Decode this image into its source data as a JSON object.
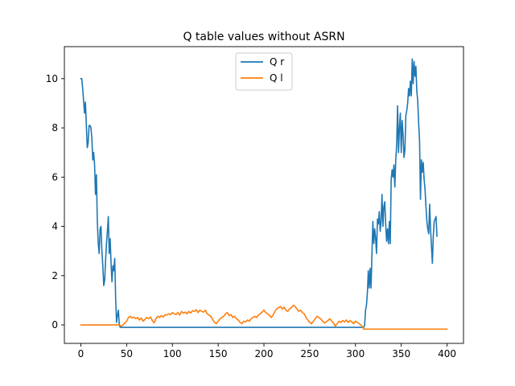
{
  "chart_data": {
    "type": "line",
    "title": "Q table values without ASRN",
    "xlabel": "",
    "ylabel": "",
    "xlim": [
      -18,
      418
    ],
    "ylim": [
      -0.75,
      11.3
    ],
    "xticks": [
      0,
      50,
      100,
      150,
      200,
      250,
      300,
      350,
      400
    ],
    "yticks": [
      0,
      2,
      4,
      6,
      8,
      10
    ],
    "legend_position": "top-center",
    "grid": false,
    "series": [
      {
        "name": "Q r",
        "color": "#1f77b4",
        "points": [
          [
            0,
            10.0
          ],
          [
            1,
            10.0
          ],
          [
            2,
            9.6
          ],
          [
            3,
            9.1
          ],
          [
            4,
            8.6
          ],
          [
            5,
            9.05
          ],
          [
            6,
            8.1
          ],
          [
            7,
            7.2
          ],
          [
            8,
            7.4
          ],
          [
            9,
            8.1
          ],
          [
            10,
            8.1
          ],
          [
            11,
            8.0
          ],
          [
            12,
            7.6
          ],
          [
            13,
            6.7
          ],
          [
            14,
            7.0
          ],
          [
            15,
            6.5
          ],
          [
            16,
            5.3
          ],
          [
            17,
            6.1
          ],
          [
            18,
            4.2
          ],
          [
            19,
            3.3
          ],
          [
            20,
            2.9
          ],
          [
            21,
            3.9
          ],
          [
            22,
            4.0
          ],
          [
            23,
            3.0
          ],
          [
            24,
            2.4
          ],
          [
            25,
            1.6
          ],
          [
            26,
            1.8
          ],
          [
            27,
            2.6
          ],
          [
            28,
            3.3
          ],
          [
            29,
            3.8
          ],
          [
            30,
            4.4
          ],
          [
            31,
            2.9
          ],
          [
            32,
            3.5
          ],
          [
            33,
            2.5
          ],
          [
            34,
            1.75
          ],
          [
            35,
            2.4
          ],
          [
            36,
            2.2
          ],
          [
            37,
            2.7
          ],
          [
            38,
            1.1
          ],
          [
            39,
            0.1
          ],
          [
            40,
            0.4
          ],
          [
            41,
            0.6
          ],
          [
            42,
            0.0
          ],
          [
            43,
            -0.1
          ],
          [
            44,
            -0.1
          ],
          [
            100,
            -0.1
          ],
          [
            200,
            -0.1
          ],
          [
            308,
            -0.1
          ],
          [
            309,
            -0.1
          ],
          [
            310,
            0.0
          ],
          [
            311,
            0.6
          ],
          [
            312,
            0.8
          ],
          [
            313,
            1.3
          ],
          [
            314,
            2.2
          ],
          [
            315,
            1.5
          ],
          [
            316,
            2.3
          ],
          [
            317,
            1.5
          ],
          [
            318,
            2.9
          ],
          [
            319,
            4.2
          ],
          [
            320,
            3.3
          ],
          [
            321,
            3.9
          ],
          [
            322,
            3.5
          ],
          [
            323,
            2.9
          ],
          [
            324,
            4.3
          ],
          [
            325,
            4.1
          ],
          [
            326,
            4.6
          ],
          [
            327,
            3.8
          ],
          [
            328,
            4.2
          ],
          [
            329,
            5.3
          ],
          [
            330,
            4.0
          ],
          [
            331,
            4.8
          ],
          [
            332,
            5.0
          ],
          [
            333,
            4.1
          ],
          [
            334,
            3.4
          ],
          [
            335,
            3.9
          ],
          [
            336,
            3.3
          ],
          [
            337,
            4.2
          ],
          [
            338,
            3.3
          ],
          [
            339,
            5.9
          ],
          [
            340,
            6.3
          ],
          [
            341,
            6.0
          ],
          [
            342,
            6.5
          ],
          [
            343,
            5.6
          ],
          [
            344,
            6.7
          ],
          [
            345,
            7.3
          ],
          [
            346,
            8.9
          ],
          [
            347,
            7.0
          ],
          [
            348,
            8.0
          ],
          [
            349,
            8.6
          ],
          [
            350,
            7.0
          ],
          [
            351,
            8.3
          ],
          [
            352,
            7.7
          ],
          [
            353,
            6.8
          ],
          [
            354,
            7.1
          ],
          [
            355,
            8.5
          ],
          [
            356,
            8.7
          ],
          [
            357,
            9.0
          ],
          [
            358,
            9.6
          ],
          [
            359,
            9.3
          ],
          [
            360,
            9.9
          ],
          [
            361,
            9.3
          ],
          [
            362,
            10.8
          ],
          [
            363,
            9.8
          ],
          [
            364,
            10.7
          ],
          [
            365,
            10.1
          ],
          [
            366,
            10.5
          ],
          [
            367,
            9.5
          ],
          [
            368,
            9.1
          ],
          [
            369,
            8.2
          ],
          [
            370,
            7.5
          ],
          [
            371,
            5.1
          ],
          [
            372,
            6.7
          ],
          [
            373,
            6.2
          ],
          [
            374,
            6.6
          ],
          [
            375,
            5.9
          ],
          [
            376,
            5.5
          ],
          [
            377,
            4.8
          ],
          [
            378,
            4.2
          ],
          [
            379,
            3.9
          ],
          [
            380,
            3.7
          ],
          [
            381,
            4.9
          ],
          [
            382,
            3.9
          ],
          [
            383,
            3.2
          ],
          [
            384,
            2.5
          ],
          [
            385,
            3.6
          ],
          [
            386,
            4.2
          ],
          [
            387,
            4.3
          ],
          [
            388,
            4.4
          ],
          [
            389,
            3.6
          ]
        ]
      },
      {
        "name": "Q l",
        "color": "#ff7f0e",
        "points": [
          [
            0,
            0.0
          ],
          [
            10,
            0.0
          ],
          [
            20,
            0.0
          ],
          [
            30,
            0.0
          ],
          [
            42,
            0.0
          ],
          [
            44,
            -0.05
          ],
          [
            46,
            0.0
          ],
          [
            48,
            0.08
          ],
          [
            50,
            0.15
          ],
          [
            52,
            0.3
          ],
          [
            54,
            0.35
          ],
          [
            56,
            0.28
          ],
          [
            58,
            0.32
          ],
          [
            60,
            0.25
          ],
          [
            62,
            0.3
          ],
          [
            64,
            0.2
          ],
          [
            66,
            0.28
          ],
          [
            68,
            0.15
          ],
          [
            70,
            0.22
          ],
          [
            72,
            0.3
          ],
          [
            74,
            0.25
          ],
          [
            76,
            0.32
          ],
          [
            78,
            0.18
          ],
          [
            80,
            0.08
          ],
          [
            82,
            0.25
          ],
          [
            84,
            0.35
          ],
          [
            86,
            0.3
          ],
          [
            88,
            0.38
          ],
          [
            90,
            0.32
          ],
          [
            92,
            0.42
          ],
          [
            94,
            0.4
          ],
          [
            96,
            0.45
          ],
          [
            98,
            0.42
          ],
          [
            100,
            0.5
          ],
          [
            102,
            0.45
          ],
          [
            104,
            0.42
          ],
          [
            106,
            0.5
          ],
          [
            108,
            0.4
          ],
          [
            110,
            0.55
          ],
          [
            112,
            0.48
          ],
          [
            114,
            0.52
          ],
          [
            116,
            0.45
          ],
          [
            118,
            0.55
          ],
          [
            120,
            0.48
          ],
          [
            122,
            0.58
          ],
          [
            124,
            0.55
          ],
          [
            126,
            0.62
          ],
          [
            128,
            0.5
          ],
          [
            130,
            0.6
          ],
          [
            132,
            0.55
          ],
          [
            134,
            0.52
          ],
          [
            136,
            0.6
          ],
          [
            138,
            0.45
          ],
          [
            140,
            0.4
          ],
          [
            142,
            0.35
          ],
          [
            144,
            0.22
          ],
          [
            146,
            0.1
          ],
          [
            148,
            0.05
          ],
          [
            150,
            0.15
          ],
          [
            152,
            0.25
          ],
          [
            154,
            0.3
          ],
          [
            156,
            0.35
          ],
          [
            158,
            0.45
          ],
          [
            160,
            0.5
          ],
          [
            162,
            0.38
          ],
          [
            164,
            0.42
          ],
          [
            166,
            0.3
          ],
          [
            168,
            0.35
          ],
          [
            170,
            0.25
          ],
          [
            172,
            0.2
          ],
          [
            174,
            0.1
          ],
          [
            176,
            0.05
          ],
          [
            178,
            0.15
          ],
          [
            180,
            0.12
          ],
          [
            182,
            0.2
          ],
          [
            184,
            0.15
          ],
          [
            186,
            0.25
          ],
          [
            188,
            0.3
          ],
          [
            190,
            0.35
          ],
          [
            192,
            0.3
          ],
          [
            194,
            0.4
          ],
          [
            196,
            0.45
          ],
          [
            198,
            0.52
          ],
          [
            200,
            0.6
          ],
          [
            202,
            0.5
          ],
          [
            204,
            0.45
          ],
          [
            206,
            0.4
          ],
          [
            208,
            0.3
          ],
          [
            210,
            0.4
          ],
          [
            212,
            0.55
          ],
          [
            214,
            0.65
          ],
          [
            216,
            0.7
          ],
          [
            218,
            0.75
          ],
          [
            220,
            0.65
          ],
          [
            222,
            0.72
          ],
          [
            224,
            0.6
          ],
          [
            226,
            0.55
          ],
          [
            228,
            0.65
          ],
          [
            230,
            0.7
          ],
          [
            232,
            0.8
          ],
          [
            234,
            0.75
          ],
          [
            236,
            0.65
          ],
          [
            238,
            0.55
          ],
          [
            240,
            0.6
          ],
          [
            242,
            0.5
          ],
          [
            244,
            0.45
          ],
          [
            246,
            0.3
          ],
          [
            248,
            0.2
          ],
          [
            250,
            0.1
          ],
          [
            252,
            0.05
          ],
          [
            254,
            0.15
          ],
          [
            256,
            0.25
          ],
          [
            258,
            0.35
          ],
          [
            260,
            0.3
          ],
          [
            262,
            0.25
          ],
          [
            264,
            0.15
          ],
          [
            266,
            0.08
          ],
          [
            268,
            0.12
          ],
          [
            270,
            0.18
          ],
          [
            272,
            0.25
          ],
          [
            274,
            0.15
          ],
          [
            276,
            0.08
          ],
          [
            278,
            -0.05
          ],
          [
            280,
            0.05
          ],
          [
            282,
            0.15
          ],
          [
            284,
            0.1
          ],
          [
            286,
            0.18
          ],
          [
            288,
            0.12
          ],
          [
            290,
            0.2
          ],
          [
            292,
            0.1
          ],
          [
            294,
            0.18
          ],
          [
            296,
            0.12
          ],
          [
            298,
            0.05
          ],
          [
            300,
            0.15
          ],
          [
            302,
            0.1
          ],
          [
            304,
            0.05
          ],
          [
            306,
            0.0
          ],
          [
            308,
            -0.1
          ],
          [
            309,
            -0.17
          ],
          [
            350,
            -0.17
          ],
          [
            400,
            -0.17
          ]
        ]
      }
    ]
  }
}
